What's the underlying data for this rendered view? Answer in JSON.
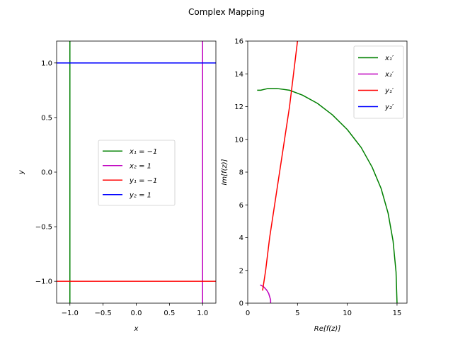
{
  "figure": {
    "title": "Complex Mapping"
  },
  "chart_data": [
    {
      "type": "line",
      "xlabel": "x",
      "ylabel": "y",
      "xlim": [
        -1.2,
        1.2
      ],
      "ylim": [
        -1.2,
        1.2
      ],
      "xticks": [
        -1.0,
        -0.5,
        0.0,
        0.5,
        1.0
      ],
      "xtick_labels": [
        "−1.0",
        "−0.5",
        "0.0",
        "0.5",
        "1.0"
      ],
      "yticks": [
        -1.0,
        -0.5,
        0.0,
        0.5,
        1.0
      ],
      "ytick_labels": [
        "−1.0",
        "−0.5",
        "0.0",
        "0.5",
        "1.0"
      ],
      "grid": false,
      "legend_position": "center",
      "series": [
        {
          "name": "x₁ = −1",
          "color": "#008000",
          "x": [
            -1.0,
            -1.0
          ],
          "y": [
            -1.2,
            1.2
          ]
        },
        {
          "name": "x₂ = 1",
          "color": "#bf00bf",
          "x": [
            1.0,
            1.0
          ],
          "y": [
            -1.2,
            1.2
          ]
        },
        {
          "name": "y₁ = −1",
          "color": "#ff0000",
          "x": [
            -1.2,
            1.2
          ],
          "y": [
            -1.0,
            -1.0
          ]
        },
        {
          "name": "y₂ = 1",
          "color": "#0000ff",
          "x": [
            -1.2,
            1.2
          ],
          "y": [
            1.0,
            1.0
          ]
        }
      ]
    },
    {
      "type": "line",
      "xlabel": "Re[f(z)]",
      "ylabel": "Im[f(z)]",
      "xlim": [
        0,
        16
      ],
      "ylim": [
        0,
        16
      ],
      "xticks": [
        0,
        5,
        10,
        15
      ],
      "xtick_labels": [
        "0",
        "5",
        "10",
        "15"
      ],
      "yticks": [
        0,
        2,
        4,
        6,
        8,
        10,
        12,
        14,
        16
      ],
      "ytick_labels": [
        "0",
        "2",
        "4",
        "6",
        "8",
        "10",
        "12",
        "14",
        "16"
      ],
      "grid": false,
      "legend_position": "upper right",
      "series": [
        {
          "name": "x₁′",
          "color": "#008000",
          "x": [
            15.0,
            14.9,
            14.6,
            14.1,
            13.4,
            12.5,
            11.4,
            10.0,
            8.5,
            7.0,
            5.5,
            4.2,
            3.0,
            2.0,
            1.3,
            1.0
          ],
          "y": [
            0.0,
            1.9,
            3.8,
            5.5,
            7.0,
            8.3,
            9.5,
            10.6,
            11.5,
            12.2,
            12.7,
            13.0,
            13.1,
            13.1,
            13.0,
            13.0
          ]
        },
        {
          "name": "x₂′",
          "color": "#bf00bf",
          "x": [
            1.3,
            1.6,
            1.9,
            2.1,
            2.2,
            2.3,
            2.3
          ],
          "y": [
            1.1,
            1.0,
            0.8,
            0.6,
            0.4,
            0.2,
            0.0
          ]
        },
        {
          "name": "y₁′",
          "color": "#ff0000",
          "x": [
            1.5,
            1.8,
            2.2,
            2.7,
            3.2,
            3.7,
            4.2,
            4.6,
            5.0
          ],
          "y": [
            0.8,
            2.0,
            4.0,
            6.0,
            8.0,
            10.0,
            12.0,
            14.0,
            16.0
          ]
        },
        {
          "name": "y₂′",
          "color": "#0000ff",
          "x": [],
          "y": []
        }
      ]
    }
  ]
}
